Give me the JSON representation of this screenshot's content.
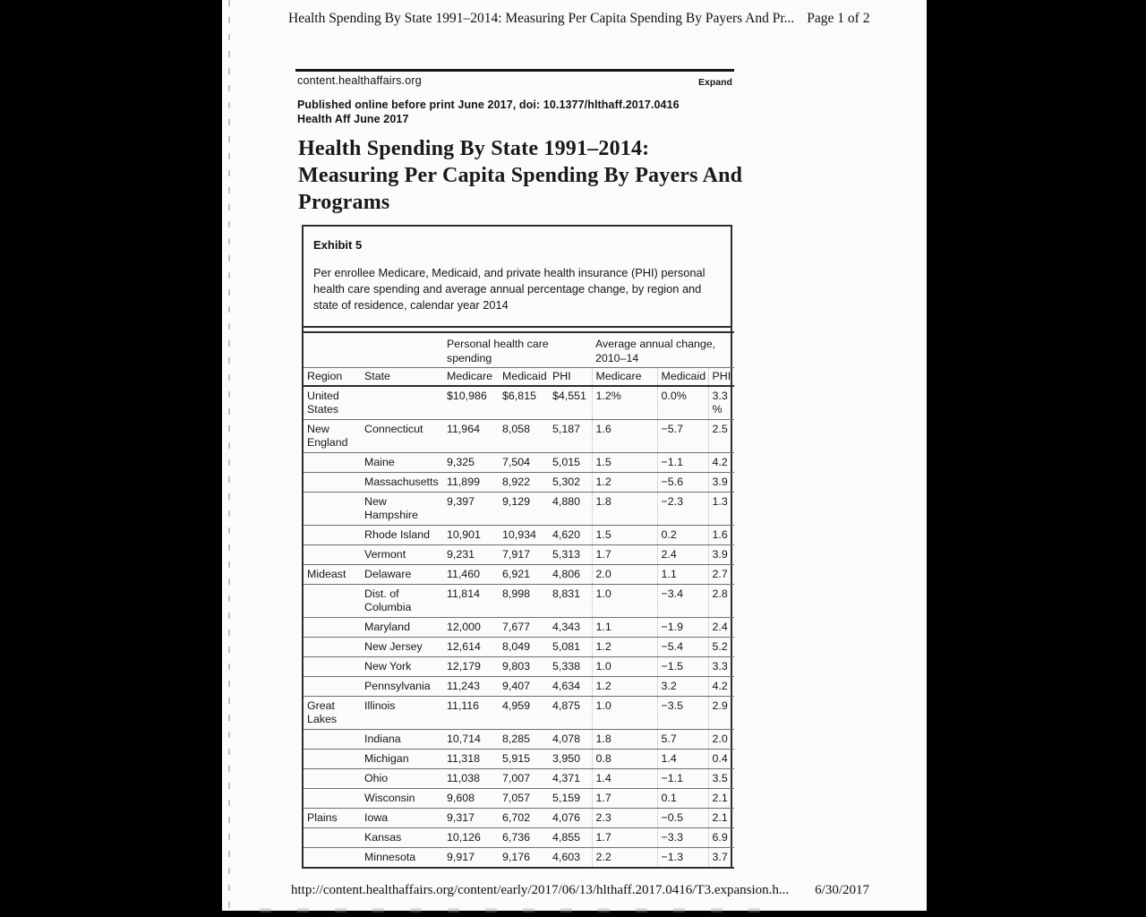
{
  "print_header": {
    "title": "Health Spending By State 1991–2014: Measuring Per Capita Spending By Payers And Pr...",
    "page_indicator": "Page 1 of 2"
  },
  "site_bar": {
    "domain": "content.healthaffairs.org",
    "expand_label": "Expand"
  },
  "publication": {
    "line1": "Published online before print June 2017, doi: 10.1377/hlthaff.2017.0416",
    "line2": "Health Aff June 2017"
  },
  "article": {
    "title": "Health Spending By State 1991–2014: Measuring Per Capita Spending By Payers And Programs"
  },
  "exhibit": {
    "label": "Exhibit 5",
    "description": "Per enrollee Medicare, Medicaid, and private health insurance (PHI) personal health care spending and average annual percentage change, by region and state of residence, calendar year 2014"
  },
  "chart_data": {
    "type": "table",
    "title": "Per enrollee Medicare, Medicaid, and private health insurance (PHI) personal health care spending and average annual percentage change, by region and state of residence, calendar year 2014",
    "group_headers": [
      "Personal health care spending",
      "Average annual change, 2010–14"
    ],
    "columns": [
      "Region",
      "State",
      "Medicare",
      "Medicaid",
      "PHI",
      "Medicare",
      "Medicaid",
      "PHI"
    ],
    "rows": [
      {
        "region": "United States",
        "state": "",
        "medicare_spending": "$10,986",
        "medicaid_spending": "$6,815",
        "phi_spending": "$4,551",
        "medicare_change": "1.2%",
        "medicaid_change": "0.0%",
        "phi_change": "3.3%"
      },
      {
        "region": "New England",
        "state": "Connecticut",
        "medicare_spending": "11,964",
        "medicaid_spending": "8,058",
        "phi_spending": "5,187",
        "medicare_change": "1.6",
        "medicaid_change": "−5.7",
        "phi_change": "2.5"
      },
      {
        "region": "",
        "state": "Maine",
        "medicare_spending": "9,325",
        "medicaid_spending": "7,504",
        "phi_spending": "5,015",
        "medicare_change": "1.5",
        "medicaid_change": "−1.1",
        "phi_change": "4.2"
      },
      {
        "region": "",
        "state": "Massachusetts",
        "medicare_spending": "11,899",
        "medicaid_spending": "8,922",
        "phi_spending": "5,302",
        "medicare_change": "1.2",
        "medicaid_change": "−5.6",
        "phi_change": "3.9"
      },
      {
        "region": "",
        "state": "New Hampshire",
        "medicare_spending": "9,397",
        "medicaid_spending": "9,129",
        "phi_spending": "4,880",
        "medicare_change": "1.8",
        "medicaid_change": "−2.3",
        "phi_change": "1.3"
      },
      {
        "region": "",
        "state": "Rhode Island",
        "medicare_spending": "10,901",
        "medicaid_spending": "10,934",
        "phi_spending": "4,620",
        "medicare_change": "1.5",
        "medicaid_change": "0.2",
        "phi_change": "1.6"
      },
      {
        "region": "",
        "state": "Vermont",
        "medicare_spending": "9,231",
        "medicaid_spending": "7,917",
        "phi_spending": "5,313",
        "medicare_change": "1.7",
        "medicaid_change": "2.4",
        "phi_change": "3.9"
      },
      {
        "region": "Mideast",
        "state": "Delaware",
        "medicare_spending": "11,460",
        "medicaid_spending": "6,921",
        "phi_spending": "4,806",
        "medicare_change": "2.0",
        "medicaid_change": "1.1",
        "phi_change": "2.7"
      },
      {
        "region": "",
        "state": "Dist. of Columbia",
        "medicare_spending": "11,814",
        "medicaid_spending": "8,998",
        "phi_spending": "8,831",
        "medicare_change": "1.0",
        "medicaid_change": "−3.4",
        "phi_change": "2.8"
      },
      {
        "region": "",
        "state": "Maryland",
        "medicare_spending": "12,000",
        "medicaid_spending": "7,677",
        "phi_spending": "4,343",
        "medicare_change": "1.1",
        "medicaid_change": "−1.9",
        "phi_change": "2.4"
      },
      {
        "region": "",
        "state": "New Jersey",
        "medicare_spending": "12,614",
        "medicaid_spending": "8,049",
        "phi_spending": "5,081",
        "medicare_change": "1.2",
        "medicaid_change": "−5.4",
        "phi_change": "5.2"
      },
      {
        "region": "",
        "state": "New York",
        "medicare_spending": "12,179",
        "medicaid_spending": "9,803",
        "phi_spending": "5,338",
        "medicare_change": "1.0",
        "medicaid_change": "−1.5",
        "phi_change": "3.3"
      },
      {
        "region": "",
        "state": "Pennsylvania",
        "medicare_spending": "11,243",
        "medicaid_spending": "9,407",
        "phi_spending": "4,634",
        "medicare_change": "1.2",
        "medicaid_change": "3.2",
        "phi_change": "4.2"
      },
      {
        "region": "Great Lakes",
        "state": "Illinois",
        "medicare_spending": "11,116",
        "medicaid_spending": "4,959",
        "phi_spending": "4,875",
        "medicare_change": "1.0",
        "medicaid_change": "−3.5",
        "phi_change": "2.9"
      },
      {
        "region": "",
        "state": "Indiana",
        "medicare_spending": "10,714",
        "medicaid_spending": "8,285",
        "phi_spending": "4,078",
        "medicare_change": "1.8",
        "medicaid_change": "5.7",
        "phi_change": "2.0"
      },
      {
        "region": "",
        "state": "Michigan",
        "medicare_spending": "11,318",
        "medicaid_spending": "5,915",
        "phi_spending": "3,950",
        "medicare_change": "0.8",
        "medicaid_change": "1.4",
        "phi_change": "0.4"
      },
      {
        "region": "",
        "state": "Ohio",
        "medicare_spending": "11,038",
        "medicaid_spending": "7,007",
        "phi_spending": "4,371",
        "medicare_change": "1.4",
        "medicaid_change": "−1.1",
        "phi_change": "3.5"
      },
      {
        "region": "",
        "state": "Wisconsin",
        "medicare_spending": "9,608",
        "medicaid_spending": "7,057",
        "phi_spending": "5,159",
        "medicare_change": "1.7",
        "medicaid_change": "0.1",
        "phi_change": "2.1"
      },
      {
        "region": "Plains",
        "state": "Iowa",
        "medicare_spending": "9,317",
        "medicaid_spending": "6,702",
        "phi_spending": "4,076",
        "medicare_change": "2.3",
        "medicaid_change": "−0.5",
        "phi_change": "2.1"
      },
      {
        "region": "",
        "state": "Kansas",
        "medicare_spending": "10,126",
        "medicaid_spending": "6,736",
        "phi_spending": "4,855",
        "medicare_change": "1.7",
        "medicaid_change": "−3.3",
        "phi_change": "6.9"
      },
      {
        "region": "",
        "state": "Minnesota",
        "medicare_spending": "9,917",
        "medicaid_spending": "9,176",
        "phi_spending": "4,603",
        "medicare_change": "2.2",
        "medicaid_change": "−1.3",
        "phi_change": "3.7"
      }
    ]
  },
  "footer": {
    "url": "http://content.healthaffairs.org/content/early/2017/06/13/hlthaff.2017.0416/T3.expansion.h...",
    "date": "6/30/2017"
  }
}
